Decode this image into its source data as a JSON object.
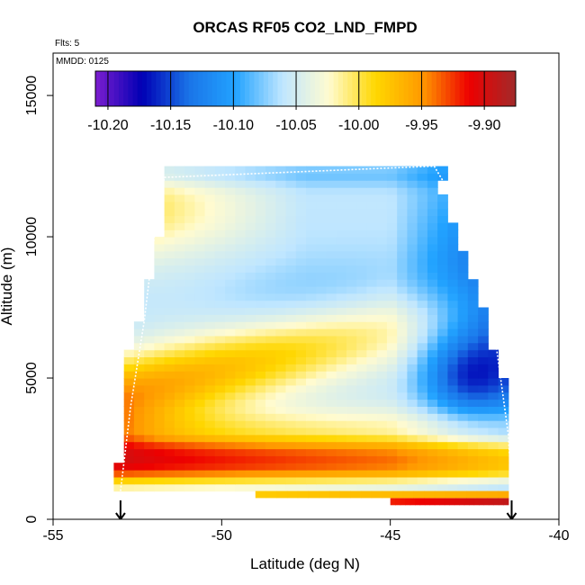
{
  "chart_data": {
    "type": "heatmap",
    "title": "ORCAS RF05 CO2_LND_FMPD",
    "flights_label": "Flts: 5",
    "date_label": "MMDD: 0125",
    "xlabel": "Latitude (deg N)",
    "ylabel": "Altitude (m)",
    "xlim": [
      -55,
      -40
    ],
    "ylim": [
      0,
      16500
    ],
    "x_ticks": [
      -55,
      -50,
      -45,
      -40
    ],
    "y_ticks": [
      0,
      5000,
      10000,
      15000
    ],
    "colorbar": {
      "range": [
        -10.21,
        -9.875
      ],
      "ticks": [
        -10.2,
        -10.15,
        -10.1,
        -10.05,
        -10.0,
        -9.95,
        -9.9
      ],
      "tick_labels": [
        "-10.20",
        "-10.15",
        "-10.10",
        "-10.05",
        "-10.00",
        "-9.95",
        "-9.90"
      ],
      "colors": [
        "#7d1dcf",
        "#0000b4",
        "#1a74e8",
        "#22a3ff",
        "#bfe6ff",
        "#fffbd0",
        "#ffd700",
        "#ff9900",
        "#ee0000",
        "#a12a2a"
      ]
    },
    "arrow_latitudes": [
      -53.0,
      -41.4
    ],
    "ground_strips": [
      {
        "lat_start": -49.0,
        "lat_end": -41.5,
        "alt_bottom": 750,
        "alt_top": 1000,
        "value_start": -9.98,
        "value_end": -9.96
      },
      {
        "lat_start": -45.0,
        "lat_end": -41.5,
        "alt_bottom": 500,
        "alt_top": 750,
        "value_start": -9.92,
        "value_end": -9.89
      }
    ]
  }
}
